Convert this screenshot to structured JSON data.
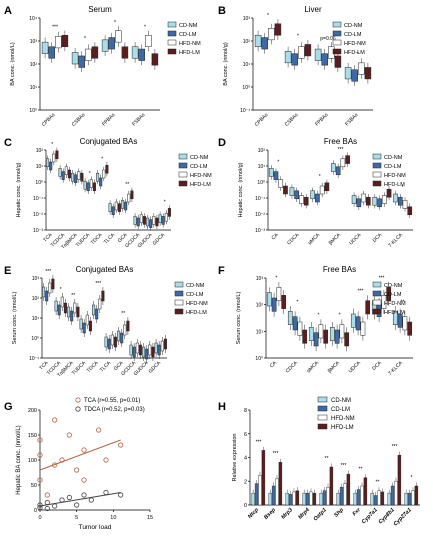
{
  "colors": {
    "CD-NM": "#a8dde9",
    "CD-LM": "#3c6aa8",
    "HFD-NM": "#ffffff",
    "HFD-LM": "#5a1e1e",
    "tca": "#b5653f",
    "tdca": "#444444"
  },
  "legend4": [
    "CD-NM",
    "CD-LM",
    "HFD-NM",
    "HFD-LM"
  ],
  "panels": [
    {
      "letter": "A",
      "title": "Serum",
      "ylabel": "BA conc. (nmol/L)",
      "ticks": [
        "10⁰",
        "10¹",
        "10²",
        "10³",
        "10⁴"
      ],
      "yrange": [
        0,
        4
      ],
      "categories": [
        "CPBAs",
        "CSBAs",
        "FPBAs",
        "FSBAs"
      ],
      "series": [
        [
          2.7,
          2.25,
          2.8,
          2.5
        ],
        [
          2.5,
          2.1,
          2.9,
          2.4
        ],
        [
          2.95,
          2.4,
          3.2,
          3.0
        ],
        [
          3.0,
          2.5,
          2.5,
          2.2
        ]
      ],
      "sig": [
        "***",
        "*",
        "*",
        "*"
      ]
    },
    {
      "letter": "B",
      "title": "Liver",
      "ylabel": "BA conc. (nmol/g)",
      "ticks": [
        "10⁻¹",
        "10⁰",
        "10¹",
        "10²",
        "10³"
      ],
      "yrange": [
        -1,
        3
      ],
      "categories": [
        "CPBAs",
        "CSBAs",
        "FPBAs",
        "FSBAs"
      ],
      "series": [
        [
          2.0,
          1.3,
          1.4,
          0.6
        ],
        [
          1.9,
          1.2,
          1.2,
          0.5
        ],
        [
          2.3,
          1.5,
          1.5,
          0.8
        ],
        [
          2.5,
          1.6,
          1.1,
          0.6
        ]
      ],
      "sig": [
        "*",
        "*",
        "p=0.06",
        "*"
      ]
    },
    {
      "letter": "C",
      "title": "Conjugated BAs",
      "ylabel": "Hepatic conc. (nmol/g)",
      "ticks": [
        "10⁻³",
        "10⁻²",
        "10⁻¹",
        "10⁰",
        "10¹",
        "10²"
      ],
      "yrange": [
        -3,
        2
      ],
      "categories": [
        "TCA",
        "TCDCA",
        "TαβMCA",
        "TUDCA",
        "TDCA",
        "TLCA",
        "GCA",
        "GCDCA",
        "GUDCA",
        "GDCA"
      ],
      "series": [
        [
          1.2,
          0.6,
          0.3,
          -0.2,
          0.3,
          -1.6,
          -1.4,
          -2.4,
          -2.5,
          -2.3
        ],
        [
          1.0,
          0.4,
          0.2,
          -0.3,
          0.0,
          -1.8,
          -1.5,
          -2.5,
          -2.6,
          -2.4
        ],
        [
          1.5,
          0.7,
          0.4,
          -0.1,
          0.5,
          -1.5,
          -1.0,
          -2.3,
          -2.4,
          -2.2
        ],
        [
          1.7,
          0.5,
          0.3,
          -0.3,
          0.8,
          -1.6,
          -0.8,
          -2.4,
          -2.5,
          -1.9
        ]
      ],
      "sig": [
        "*",
        "",
        "",
        "*",
        "*",
        "",
        "**",
        "",
        "",
        "*"
      ]
    },
    {
      "letter": "D",
      "title": "Free BAs",
      "ylabel": "Hepatic conc. (nmol/g)",
      "ticks": [
        "10⁻³",
        "10⁻²",
        "10⁻¹",
        "10⁰",
        "10¹",
        "10²"
      ],
      "yrange": [
        -3,
        2
      ],
      "categories": [
        "CA",
        "CDCA",
        "αMCA",
        "βMCA",
        "UDCA",
        "DCA",
        "7-KLCA"
      ],
      "series": [
        [
          0.6,
          -0.6,
          -0.8,
          0.9,
          -1.1,
          -1.2,
          -1.0
        ],
        [
          0.4,
          -0.8,
          -1.0,
          0.7,
          -1.3,
          -1.3,
          -1.2
        ],
        [
          -0.1,
          -1.1,
          -0.5,
          1.2,
          -1.0,
          -1.1,
          -1.4
        ],
        [
          -0.5,
          -1.2,
          -0.3,
          1.4,
          -1.2,
          -0.7,
          -1.8
        ]
      ],
      "sig": [
        "*",
        "",
        "*",
        "***",
        "",
        "",
        "*"
      ]
    },
    {
      "letter": "E",
      "title": "Conjugated BAs",
      "ylabel": "Serum conc. (nmol/L)",
      "ticks": [
        "10⁻¹",
        "10⁰",
        "10¹",
        "10²",
        "10³"
      ],
      "yrange": [
        -1,
        3
      ],
      "categories": [
        "TCA",
        "TCDCA",
        "TαβMCA",
        "TUDCA",
        "TDCA",
        "TLCA",
        "GCA",
        "GCDCA",
        "GUDCA",
        "GDCA"
      ],
      "series": [
        [
          2.3,
          1.6,
          1.3,
          0.7,
          1.4,
          -0.2,
          0.1,
          -0.6,
          -0.7,
          -0.5
        ],
        [
          2.1,
          1.4,
          1.1,
          0.5,
          1.2,
          -0.3,
          0.0,
          -0.7,
          -0.8,
          -0.6
        ],
        [
          2.5,
          1.8,
          1.5,
          0.9,
          1.7,
          -0.1,
          0.4,
          -0.5,
          -0.6,
          -0.4
        ],
        [
          2.7,
          1.5,
          1.3,
          0.6,
          2.1,
          -0.2,
          0.6,
          -0.6,
          -0.7,
          -0.3
        ]
      ],
      "sig": [
        "***",
        "*",
        "**",
        "",
        "***",
        "",
        "**",
        "",
        "",
        ""
      ]
    },
    {
      "letter": "F",
      "title": "Free BAs",
      "ylabel": "Serum conc. (nmol/L)",
      "ticks": [
        "10⁰",
        "10¹",
        "10²",
        "10³"
      ],
      "yrange": [
        0,
        3
      ],
      "categories": [
        "CA",
        "CDCA",
        "αMCA",
        "βMCA",
        "UDCA",
        "DCA",
        "7-KLCA"
      ],
      "series": [
        [
          2.2,
          1.5,
          0.9,
          0.9,
          1.4,
          1.9,
          1.5
        ],
        [
          2.0,
          1.3,
          0.7,
          0.8,
          1.3,
          1.8,
          1.4
        ],
        [
          2.4,
          1.1,
          1.0,
          1.0,
          1.1,
          2.1,
          1.3
        ],
        [
          2.1,
          0.8,
          0.8,
          0.7,
          1.9,
          2.4,
          1.1
        ]
      ],
      "sig": [
        "*",
        "*",
        "*",
        "*",
        "***",
        "***",
        "**"
      ]
    }
  ],
  "panelG": {
    "letter": "G",
    "ylabel": "Hepatic BA conc. (nmol/L)",
    "xlabel": "Tumor load",
    "xticks": [
      "0",
      "5",
      "10",
      "15"
    ],
    "yticks": [
      "0",
      "50",
      "100",
      "150",
      "200"
    ],
    "legend": [
      "TCA (r=0.55, p=0.01)",
      "TDCA (r=0.52, p=0.03)"
    ],
    "tca_points": [
      [
        0,
        60
      ],
      [
        0,
        110
      ],
      [
        1,
        30
      ],
      [
        2,
        180
      ],
      [
        3,
        100
      ],
      [
        4,
        150
      ],
      [
        5,
        80
      ],
      [
        6,
        120
      ],
      [
        6,
        60
      ],
      [
        8,
        160
      ],
      [
        9,
        100
      ],
      [
        11,
        130
      ],
      [
        0,
        140
      ],
      [
        2,
        90
      ]
    ],
    "tdca_points": [
      [
        0,
        5
      ],
      [
        0,
        10
      ],
      [
        1,
        15
      ],
      [
        2,
        8
      ],
      [
        3,
        20
      ],
      [
        4,
        25
      ],
      [
        5,
        10
      ],
      [
        6,
        30
      ],
      [
        7,
        20
      ],
      [
        9,
        35
      ],
      [
        11,
        30
      ],
      [
        1,
        3
      ]
    ],
    "tca_fit": [
      [
        0,
        80
      ],
      [
        11,
        140
      ]
    ],
    "tdca_fit": [
      [
        0,
        8
      ],
      [
        11,
        35
      ]
    ]
  },
  "panelH": {
    "letter": "H",
    "ylabel": "Relative expression",
    "ticks": [
      "0",
      "2",
      "4",
      "6",
      "8"
    ],
    "yrange": [
      0,
      8
    ],
    "categories": [
      "Ntcp",
      "Bsep",
      "Mrp3",
      "Mrp4",
      "Oatp1",
      "Shp",
      "Fxr",
      "Cyp7a1",
      "Cyp8b1",
      "Cyp27a1"
    ],
    "series": [
      [
        1.0,
        1.0,
        1.0,
        1.0,
        1.0,
        1.0,
        1.0,
        1.0,
        1.0,
        1.0
      ],
      [
        1.8,
        1.6,
        0.9,
        1.0,
        1.2,
        1.5,
        1.3,
        0.8,
        1.6,
        1.0
      ],
      [
        2.5,
        2.2,
        1.1,
        1.1,
        1.5,
        1.8,
        1.6,
        1.2,
        2.0,
        1.2
      ],
      [
        4.6,
        3.6,
        1.2,
        1.0,
        3.2,
        2.6,
        2.3,
        1.1,
        4.2,
        1.6
      ]
    ],
    "sig": [
      "***",
      "***",
      "",
      "",
      "**",
      "***",
      "**",
      "**",
      "***",
      "*"
    ]
  }
}
